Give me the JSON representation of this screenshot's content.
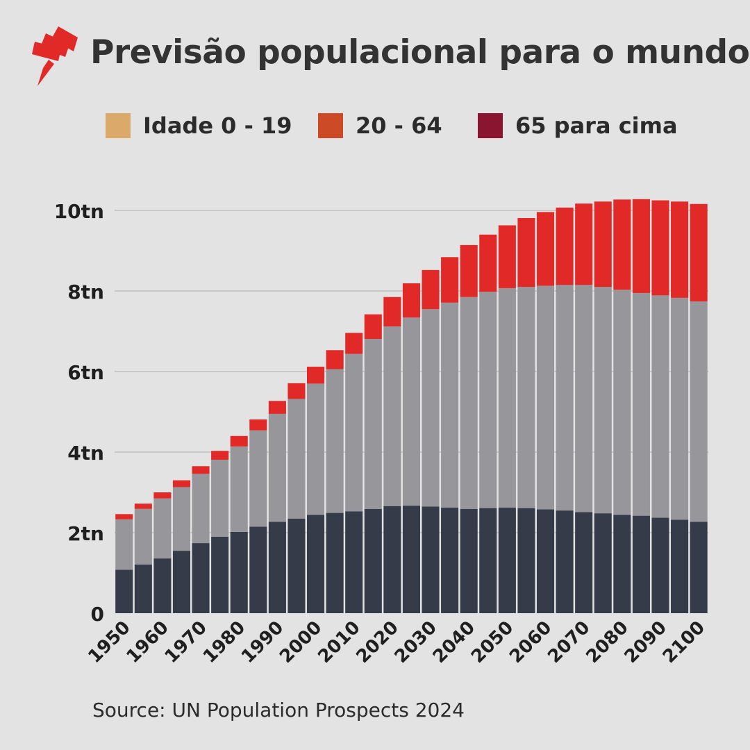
{
  "header": {
    "title": "Previsão populacional para o mundo",
    "logo_icon": "sbs-radiating-lines-logo"
  },
  "legend": [
    {
      "label": "Idade 0 - 19",
      "color": "#dba96a"
    },
    {
      "label": "20 - 64",
      "color": "#cc4b26"
    },
    {
      "label": "65 para cima",
      "color": "#8a1530"
    }
  ],
  "source": "Source: UN Population Prospects 2024",
  "chart_data": {
    "type": "bar",
    "stacked": true,
    "categories": [
      "1950",
      "1955",
      "1960",
      "1965",
      "1970",
      "1975",
      "1980",
      "1985",
      "1990",
      "1995",
      "2000",
      "2005",
      "2010",
      "2015",
      "2020",
      "2025",
      "2030",
      "2035",
      "2040",
      "2045",
      "2050",
      "2055",
      "2060",
      "2065",
      "2070",
      "2075",
      "2080",
      "2085",
      "2090",
      "2095",
      "2100"
    ],
    "x_tick_labels": [
      "1950",
      "1960",
      "1970",
      "1980",
      "1990",
      "2000",
      "2010",
      "2020",
      "2030",
      "2040",
      "2050",
      "2060",
      "2070",
      "2080",
      "2090",
      "2100"
    ],
    "y_tick_labels": [
      "0",
      "2tn",
      "4tn",
      "6tn",
      "8tn",
      "10tn"
    ],
    "ylim": [
      0,
      10.5
    ],
    "y_ticks": [
      0,
      2,
      4,
      6,
      8,
      10
    ],
    "grid": true,
    "series": [
      {
        "color": "#353b48",
        "values": [
          1.08,
          1.21,
          1.36,
          1.55,
          1.74,
          1.9,
          2.02,
          2.15,
          2.27,
          2.35,
          2.44,
          2.49,
          2.53,
          2.59,
          2.66,
          2.67,
          2.65,
          2.62,
          2.59,
          2.61,
          2.62,
          2.61,
          2.58,
          2.55,
          2.51,
          2.48,
          2.44,
          2.42,
          2.37,
          2.32,
          2.27
        ]
      },
      {
        "color": "#97979b",
        "values": [
          1.25,
          1.38,
          1.49,
          1.58,
          1.72,
          1.91,
          2.12,
          2.39,
          2.68,
          2.97,
          3.26,
          3.57,
          3.91,
          4.22,
          4.46,
          4.67,
          4.9,
          5.09,
          5.26,
          5.37,
          5.45,
          5.49,
          5.55,
          5.6,
          5.64,
          5.62,
          5.59,
          5.53,
          5.52,
          5.51,
          5.47
        ]
      },
      {
        "color": "#e12a27",
        "values": [
          0.13,
          0.13,
          0.15,
          0.17,
          0.19,
          0.22,
          0.26,
          0.27,
          0.32,
          0.39,
          0.42,
          0.47,
          0.52,
          0.61,
          0.73,
          0.85,
          0.97,
          1.13,
          1.29,
          1.42,
          1.56,
          1.71,
          1.83,
          1.92,
          2.02,
          2.12,
          2.24,
          2.33,
          2.36,
          2.39,
          2.42
        ]
      }
    ]
  }
}
